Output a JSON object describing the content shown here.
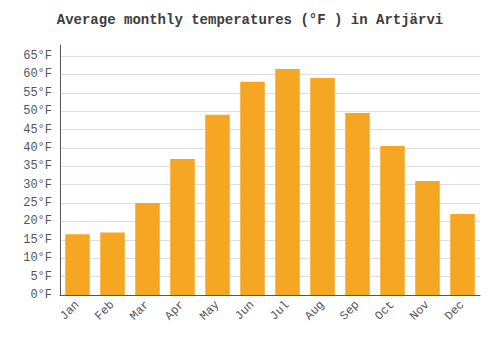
{
  "chart_data": {
    "type": "bar",
    "title": "Average monthly temperatures (°F ) in Artjärvi",
    "categories": [
      "Jan",
      "Feb",
      "Mar",
      "Apr",
      "May",
      "Jun",
      "Jul",
      "Aug",
      "Sep",
      "Oct",
      "Nov",
      "Dec"
    ],
    "values": [
      16.5,
      17.0,
      25.0,
      37.0,
      49.0,
      58.0,
      61.5,
      59.0,
      49.5,
      40.5,
      31.0,
      22.0
    ],
    "color": "#F5A623",
    "ylim": [
      0,
      68
    ],
    "yticks": [
      {
        "value": 0,
        "label": "0°F"
      },
      {
        "value": 5,
        "label": "5°F"
      },
      {
        "value": 10,
        "label": "10°F"
      },
      {
        "value": 15,
        "label": "15°F"
      },
      {
        "value": 20,
        "label": "20°F"
      },
      {
        "value": 25,
        "label": "25°F"
      },
      {
        "value": 30,
        "label": "30°F"
      },
      {
        "value": 35,
        "label": "35°F"
      },
      {
        "value": 40,
        "label": "40°F"
      },
      {
        "value": 45,
        "label": "45°F"
      },
      {
        "value": 50,
        "label": "50°F"
      },
      {
        "value": 55,
        "label": "55°F"
      },
      {
        "value": 60,
        "label": "60°F"
      },
      {
        "value": 65,
        "label": "65°F"
      }
    ],
    "grid": true
  }
}
